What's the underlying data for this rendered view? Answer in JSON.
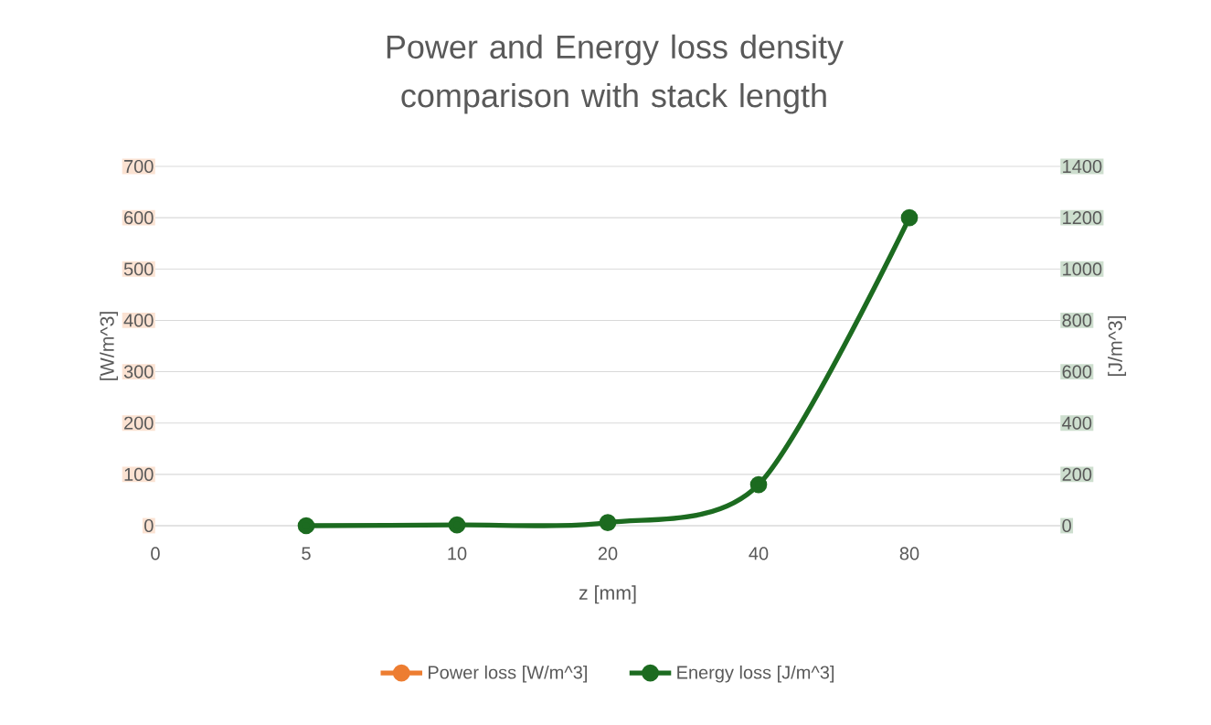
{
  "chart_data": {
    "type": "line",
    "title": "Power and Energy loss density comparison with stack length",
    "xlabel": "z [mm]",
    "ylabel": "[W/m^3]",
    "y2label": "[J/m^3]",
    "categories": [
      "0",
      "5",
      "10",
      "20",
      "40",
      "80",
      null
    ],
    "series": [
      {
        "name": "Power loss [W/m^3]",
        "color": "#ed7d31",
        "values": [
          null,
          null,
          null,
          null,
          null,
          null,
          null
        ]
      },
      {
        "name": "Energy loss [J/m^3]",
        "color": "#1c6b20",
        "axis": "y2",
        "values": [
          null,
          0,
          3,
          12,
          160,
          1200,
          null
        ]
      }
    ],
    "ylim": [
      0,
      700
    ],
    "yticks": [
      0,
      100,
      200,
      300,
      400,
      500,
      600,
      700
    ],
    "y2lim": [
      0,
      1400
    ],
    "y2ticks": [
      0,
      200,
      400,
      600,
      800,
      1000,
      1200,
      1400
    ],
    "grid": "y",
    "legend": "bottom",
    "marker": "circle",
    "line_style": "solid"
  }
}
